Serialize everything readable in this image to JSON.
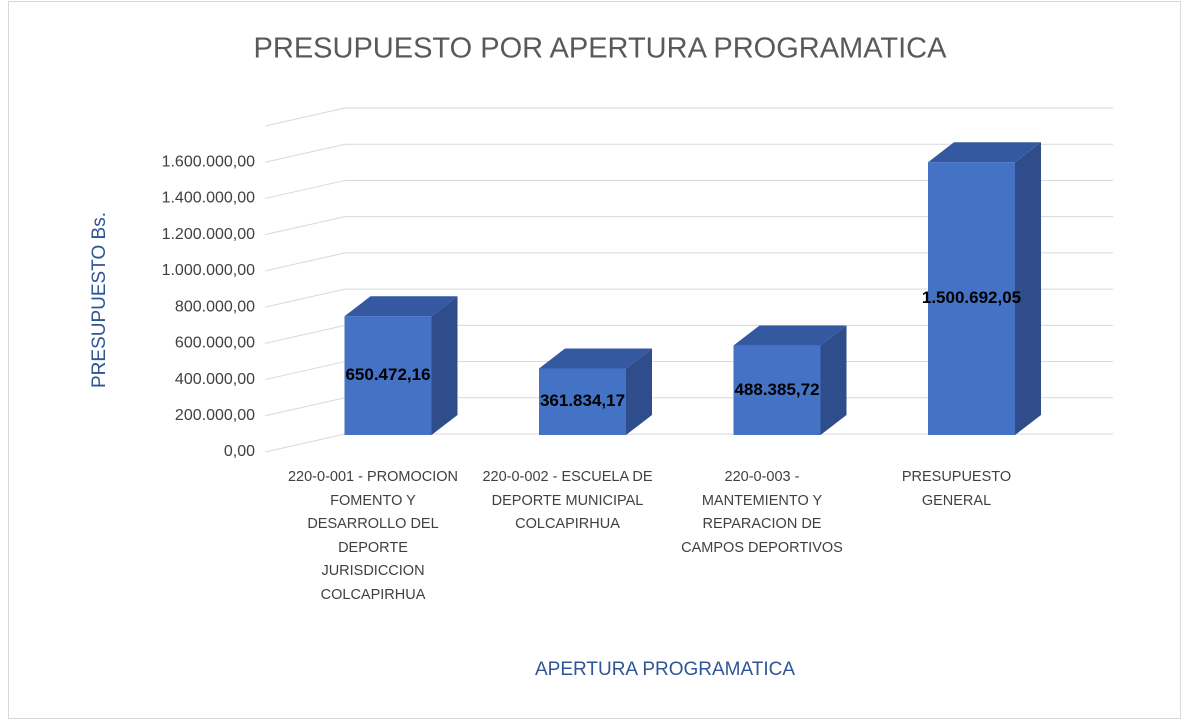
{
  "chart_data": {
    "type": "bar3d",
    "title": "PRESUPUESTO POR APERTURA PROGRAMATICA",
    "x_label": "APERTURA PROGRAMATICA",
    "y_label": "PRESUPUESTO Bs.",
    "categories": [
      "220-0-001 - PROMOCION FOMENTO Y DESARROLLO DEL DEPORTE JURISDICCION COLCAPIRHUA",
      "220-0-002 - ESCUELA DE DEPORTE MUNICIPAL COLCAPIRHUA",
      "220-0-003 - MANTEMIENTO Y REPARACION DE CAMPOS DEPORTIVOS",
      "PRESUPUESTO GENERAL"
    ],
    "values": [
      650472.16,
      361834.17,
      488385.72,
      1500692.05
    ],
    "value_labels": [
      "650.472,16",
      "361.834,17",
      "488.385,72",
      "1.500.692,05"
    ],
    "color": "#4472c4",
    "ylim": [
      0,
      1800000
    ],
    "yticks": [
      {
        "value": 0,
        "label": "0,00"
      },
      {
        "value": 200000,
        "label": "200.000,00"
      },
      {
        "value": 400000,
        "label": "400.000,00"
      },
      {
        "value": 600000,
        "label": "600.000,00"
      },
      {
        "value": 800000,
        "label": "800.000,00"
      },
      {
        "value": 1000000,
        "label": "1.000.000,00"
      },
      {
        "value": 1200000,
        "label": "1.200.000,00"
      },
      {
        "value": 1400000,
        "label": "1.400.000,00"
      },
      {
        "value": 1600000,
        "label": "1.600.000,00"
      }
    ],
    "grid": true
  }
}
